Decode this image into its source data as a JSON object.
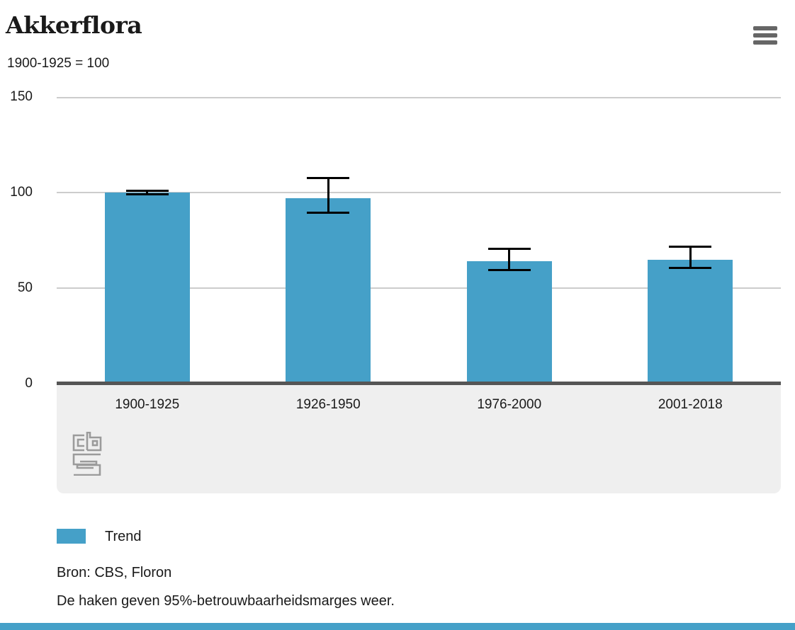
{
  "title": "Akkerflora",
  "subtitle": "1900-1925 = 100",
  "legend": {
    "items": [
      {
        "label": "Trend",
        "color": "#45a0c8"
      }
    ]
  },
  "source": "Bron: CBS, Floron",
  "note": "De haken geven 95%-betrouwbaarheidsmarges weer.",
  "colors": {
    "bar": "#45a0c8",
    "gridline": "#cccccc",
    "axis_line": "#555555",
    "band_background": "#efefef",
    "error_bar": "#000000",
    "menu_icon": "#666666",
    "logo": "#9b9b9b",
    "text": "#1a1a1a",
    "footer_bar": "#45a0c8"
  },
  "chart_data": {
    "type": "bar",
    "title": "Akkerflora",
    "subtitle": "1900-1925 = 100",
    "categories": [
      "1900-1925",
      "1926-1950",
      "1976-2000",
      "2001-2018"
    ],
    "series": [
      {
        "name": "Trend",
        "values": [
          100,
          97,
          64,
          65
        ],
        "ci_low": [
          99.5,
          90,
          60,
          61
        ],
        "ci_high": [
          100.5,
          107,
          70,
          71
        ]
      }
    ],
    "xlabel": "",
    "ylabel": "",
    "ylim": [
      0,
      150
    ],
    "yticks": [
      0,
      50,
      100,
      150
    ],
    "grid": true,
    "legend_position": "bottom-left",
    "error_bars": "95%-betrouwbaarheidsmarges"
  }
}
